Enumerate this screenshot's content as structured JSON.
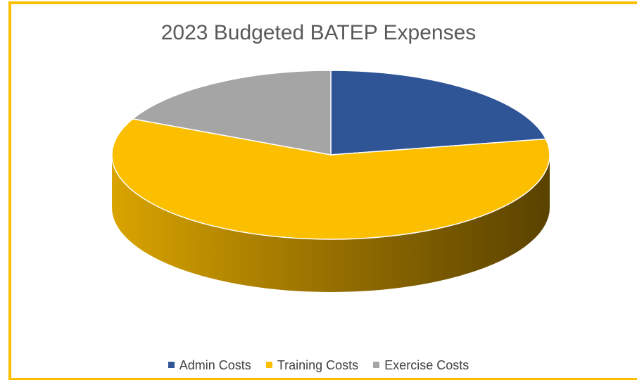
{
  "chart_data": {
    "type": "pie",
    "title": "2023 Budgeted BATEP Expenses",
    "categories": [
      "Admin Costs",
      "Training Costs",
      "Exercise Costs"
    ],
    "values": [
      22,
      60,
      18
    ],
    "colors": [
      "#2F5597",
      "#FBBF00",
      "#A5A5A5"
    ],
    "side_colors": [
      "#1F3A68",
      "#B88A00",
      "#7A7A7A"
    ],
    "legend_position": "bottom",
    "style": "3d"
  }
}
